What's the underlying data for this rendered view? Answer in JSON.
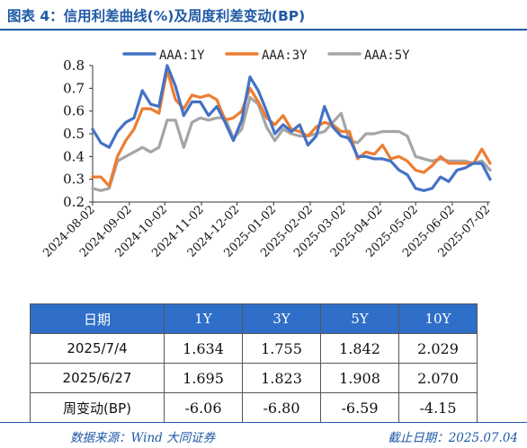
{
  "title": "图表 4：信用利差曲线(%)及周度利差变动(BP)",
  "chart_data": {
    "type": "line",
    "title": "",
    "xlabel": "",
    "ylabel": "",
    "ylim": [
      0.2,
      0.8
    ],
    "yticks": [
      "0.2",
      "0.3",
      "0.4",
      "0.5",
      "0.6",
      "0.7",
      "0.8"
    ],
    "xticks": [
      "2024-08-02",
      "2024-09-02",
      "2024-10-02",
      "2024-11-02",
      "2024-12-02",
      "2025-01-02",
      "2025-02-02",
      "2025-03-02",
      "2025-04-02",
      "2025-05-02",
      "2025-06-02",
      "2025-07-02"
    ],
    "x_range": [
      "2024-08-02",
      "2025-07-04"
    ],
    "grid": false,
    "legend": "top",
    "dates": [
      "2024-08-02",
      "2024-08-09",
      "2024-08-16",
      "2024-08-23",
      "2024-08-30",
      "2024-09-06",
      "2024-09-13",
      "2024-09-20",
      "2024-09-27",
      "2024-10-04",
      "2024-10-11",
      "2024-10-18",
      "2024-10-25",
      "2024-11-01",
      "2024-11-08",
      "2024-11-15",
      "2024-11-22",
      "2024-11-29",
      "2024-12-06",
      "2024-12-13",
      "2024-12-20",
      "2024-12-27",
      "2025-01-03",
      "2025-01-10",
      "2025-01-17",
      "2025-01-24",
      "2025-01-31",
      "2025-02-07",
      "2025-02-14",
      "2025-02-21",
      "2025-02-28",
      "2025-03-07",
      "2025-03-14",
      "2025-03-21",
      "2025-03-28",
      "2025-04-04",
      "2025-04-11",
      "2025-04-18",
      "2025-04-25",
      "2025-05-02",
      "2025-05-09",
      "2025-05-16",
      "2025-05-23",
      "2025-05-30",
      "2025-06-06",
      "2025-06-13",
      "2025-06-20",
      "2025-06-27",
      "2025-07-04"
    ],
    "series": [
      {
        "name": "AAA:1Y",
        "color": "#4472c4",
        "values": [
          0.52,
          0.46,
          0.44,
          0.51,
          0.55,
          0.57,
          0.69,
          0.63,
          0.62,
          0.8,
          0.71,
          0.58,
          0.64,
          0.64,
          0.58,
          0.62,
          0.55,
          0.47,
          0.56,
          0.75,
          0.69,
          0.6,
          0.5,
          0.54,
          0.51,
          0.54,
          0.45,
          0.49,
          0.62,
          0.53,
          0.49,
          0.48,
          0.4,
          0.4,
          0.39,
          0.39,
          0.38,
          0.34,
          0.32,
          0.26,
          0.25,
          0.26,
          0.31,
          0.29,
          0.34,
          0.35,
          0.37,
          0.3695,
          0.3
        ]
      },
      {
        "name": "AAA:3Y",
        "color": "#ed7d31",
        "values": [
          0.31,
          0.31,
          0.27,
          0.4,
          0.47,
          0.52,
          0.61,
          0.61,
          0.59,
          0.78,
          0.65,
          0.61,
          0.67,
          0.66,
          0.67,
          0.65,
          0.56,
          0.57,
          0.6,
          0.7,
          0.64,
          0.57,
          0.54,
          0.58,
          0.52,
          0.51,
          0.49,
          0.53,
          0.55,
          0.54,
          0.51,
          0.51,
          0.39,
          0.42,
          0.41,
          0.45,
          0.39,
          0.4,
          0.38,
          0.34,
          0.33,
          0.36,
          0.4,
          0.37,
          0.37,
          0.37,
          0.37,
          0.4325,
          0.37
        ]
      },
      {
        "name": "AAA:5Y",
        "color": "#a5a5a5",
        "values": [
          0.26,
          0.25,
          0.26,
          0.38,
          0.4,
          0.42,
          0.44,
          0.42,
          0.44,
          0.56,
          0.56,
          0.44,
          0.55,
          0.57,
          0.56,
          0.57,
          0.57,
          0.48,
          0.52,
          0.66,
          0.63,
          0.53,
          0.47,
          0.52,
          0.5,
          0.49,
          0.49,
          0.5,
          0.51,
          0.55,
          0.59,
          0.47,
          0.46,
          0.5,
          0.5,
          0.51,
          0.51,
          0.51,
          0.49,
          0.4,
          0.39,
          0.38,
          0.39,
          0.38,
          0.38,
          0.38,
          0.37,
          0.3807,
          0.34
        ]
      }
    ]
  },
  "table": {
    "headers": [
      "日期",
      "1Y",
      "3Y",
      "5Y",
      "10Y"
    ],
    "rows": [
      [
        "2025/7/4",
        "1.634",
        "1.755",
        "1.842",
        "2.029"
      ],
      [
        "2025/6/27",
        "1.695",
        "1.823",
        "1.908",
        "2.070"
      ],
      [
        "周变动(BP)",
        "-6.06",
        "-6.80",
        "-6.59",
        "-4.15"
      ]
    ]
  },
  "footer": {
    "source": "数据来源：Wind 大同证券",
    "cutoff": "截止日期：2025.07.04"
  }
}
